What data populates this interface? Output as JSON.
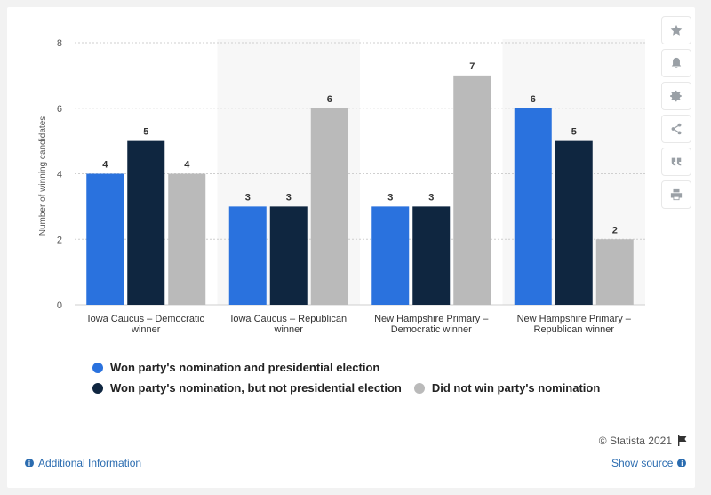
{
  "chart_data": {
    "type": "bar",
    "categories": [
      "Iowa Caucus – Democratic winner",
      "Iowa Caucus – Republican winner",
      "New Hampshire Primary – Democratic winner",
      "New Hampshire Primary – Republican winner"
    ],
    "category_lines": [
      [
        "Iowa Caucus – Democratic",
        "winner"
      ],
      [
        "Iowa Caucus – Republican",
        "winner"
      ],
      [
        "New Hampshire Primary –",
        "Democratic winner"
      ],
      [
        "New Hampshire Primary –",
        "Republican winner"
      ]
    ],
    "series": [
      {
        "name": "Won party's nomination and presidential election",
        "color": "#2a72de",
        "values": [
          4,
          3,
          3,
          6
        ]
      },
      {
        "name": "Won party's nomination, but not presidential election",
        "color": "#0f2640",
        "values": [
          5,
          3,
          3,
          5
        ]
      },
      {
        "name": "Did not win party's nomination",
        "color": "#bababa",
        "values": [
          4,
          6,
          7,
          2
        ]
      }
    ],
    "ylabel": "Number of winning candidates",
    "ylim": [
      0,
      8
    ],
    "yticks": [
      0,
      2,
      4,
      6,
      8
    ],
    "grid": true,
    "legend_position": "bottom"
  },
  "credit": "© Statista 2021",
  "footer": {
    "additional_info": "Additional Information",
    "show_source": "Show source"
  },
  "tools": [
    "star-icon",
    "bell-icon",
    "gear-icon",
    "share-icon",
    "quote-icon",
    "print-icon"
  ]
}
